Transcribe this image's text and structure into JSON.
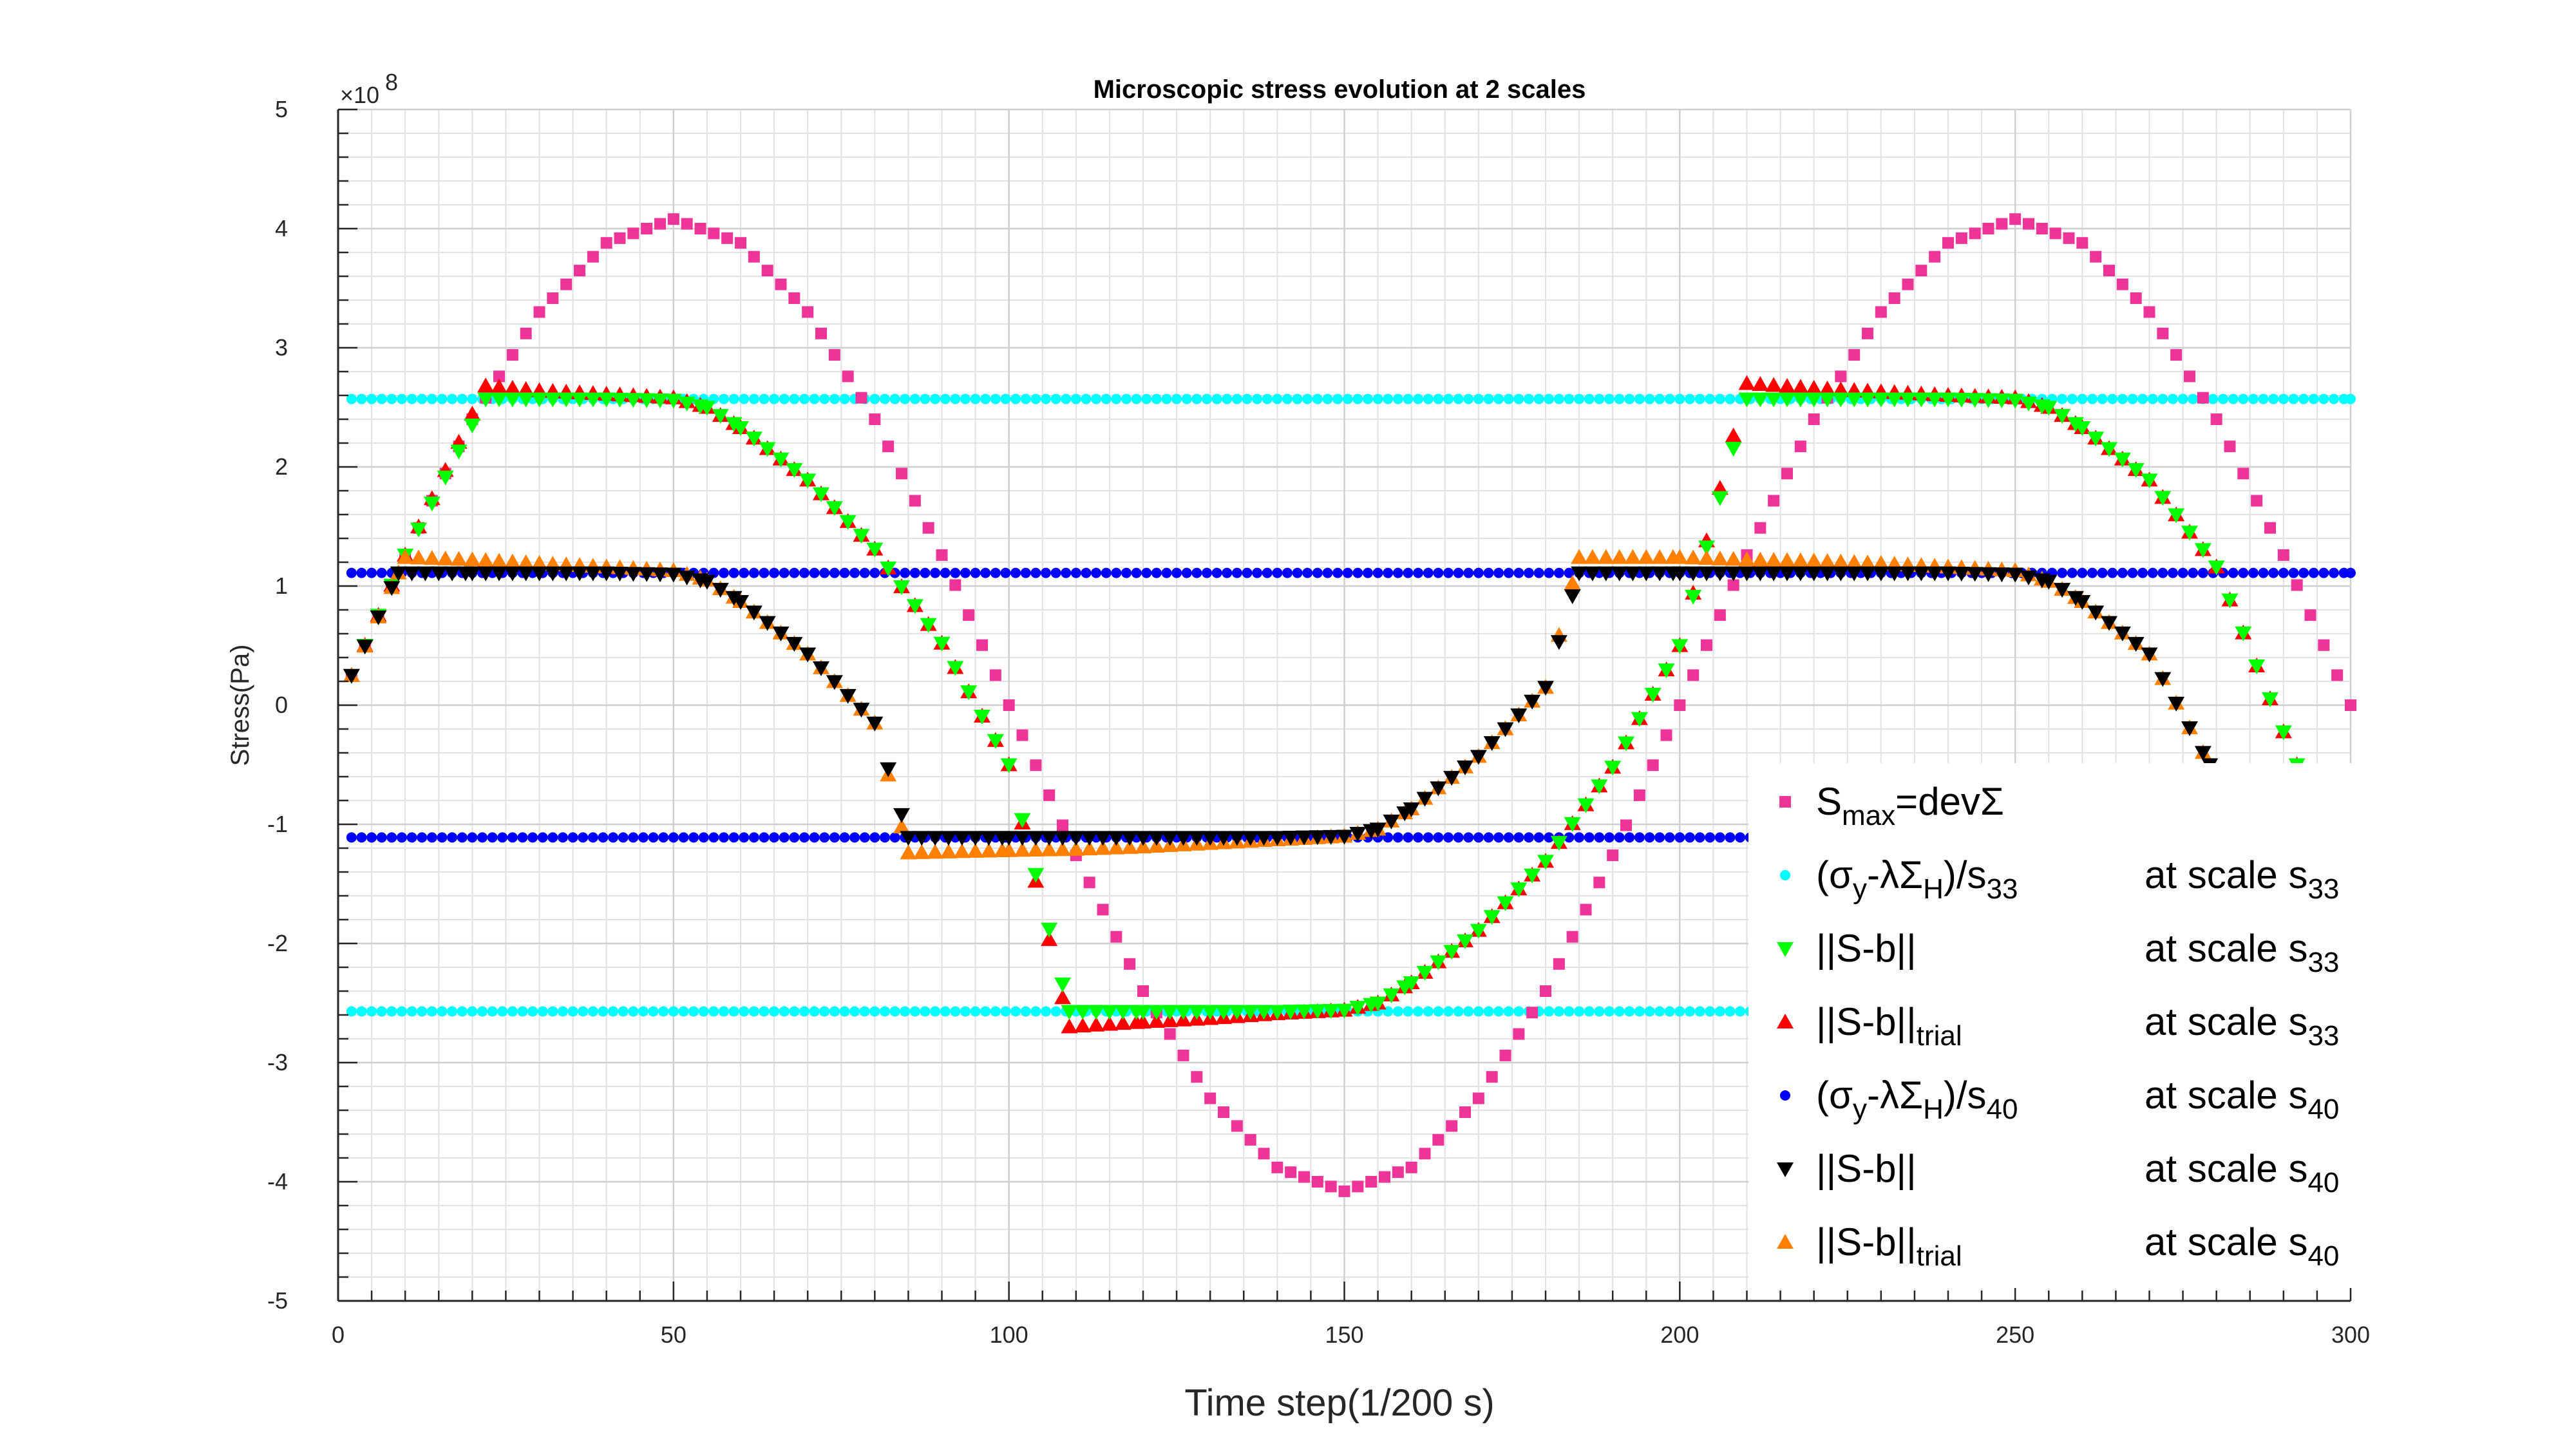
{
  "chart_data": {
    "type": "scatter",
    "title": "Microscopic stress evolution at 2 scales",
    "xlabel": "Time step(1/200 s)",
    "ylabel": "Stress(Pa)",
    "exponent_label": "×10",
    "exponent_power": "8",
    "xlim": [
      0,
      300
    ],
    "ylim": [
      -5,
      5
    ],
    "y_multiplier": 100000000,
    "x_ticks": [
      0,
      50,
      100,
      150,
      200,
      250,
      300
    ],
    "y_ticks": [
      -5,
      -4,
      -3,
      -2,
      -1,
      0,
      1,
      2,
      3,
      4,
      5
    ],
    "grid": true,
    "minor_grid": true,
    "legend_position": "bottom-right",
    "colors": {
      "smax": "#ee3399",
      "threshold33": "#00ffff",
      "sb33": "#00ff00",
      "sbtrial33": "#ff0000",
      "threshold40": "#0000ff",
      "sb40": "#000000",
      "sbtrial40": "#ff8000"
    },
    "series": [
      {
        "key": "smax",
        "marker": "square",
        "legend": {
          "main": "S",
          "sub": "max",
          "rest": "=devΣ",
          "scale": "",
          "scale_sub": ""
        },
        "x": [
          2,
          10,
          20,
          30,
          40,
          50,
          60,
          70,
          80,
          90,
          100,
          110,
          120,
          130,
          140,
          150,
          160,
          170,
          180,
          190,
          200,
          210,
          220,
          230,
          240,
          250,
          260,
          270,
          280,
          290,
          300
        ],
        "y": [
          0.25,
          1.26,
          2.4,
          3.3,
          3.88,
          4.08,
          3.88,
          3.3,
          2.4,
          1.26,
          0.0,
          -1.26,
          -2.4,
          -3.3,
          -3.88,
          -4.08,
          -3.88,
          -3.3,
          -2.4,
          -1.26,
          0.0,
          1.26,
          2.4,
          3.3,
          3.88,
          4.08,
          3.88,
          3.3,
          2.4,
          1.26,
          0.0
        ]
      },
      {
        "key": "threshold33",
        "marker": "circle",
        "legend": {
          "main": "(σ",
          "sub": "y",
          "rest": "-λΣ",
          "sub2": "H",
          "rest2": ")/s",
          "sub3": "33",
          "scale": "at scale s",
          "scale_sub": "33"
        },
        "x": [
          2,
          300
        ],
        "y": [
          2.57,
          2.57
        ],
        "y_mirror": -2.57
      },
      {
        "key": "sb33",
        "marker": "triangle-down",
        "legend": {
          "main": "||S-b||",
          "sub": "",
          "rest": "",
          "scale": "at scale s",
          "scale_sub": "33"
        },
        "x": [
          2,
          10,
          22,
          30,
          40,
          50,
          55,
          60,
          70,
          80,
          90,
          100,
          109,
          120,
          130,
          140,
          150,
          155,
          160,
          170,
          180,
          190,
          200,
          210,
          220,
          230,
          240,
          250,
          255,
          260,
          270,
          280,
          292
        ],
        "y": [
          0.25,
          1.26,
          2.57,
          2.57,
          2.57,
          2.56,
          2.5,
          2.33,
          1.89,
          1.31,
          0.52,
          -0.5,
          -2.57,
          -2.57,
          -2.57,
          -2.57,
          -2.56,
          -2.5,
          -2.33,
          -1.89,
          -1.31,
          -0.52,
          0.5,
          2.57,
          2.57,
          2.57,
          2.57,
          2.56,
          2.5,
          2.33,
          1.89,
          1.16,
          -0.5
        ]
      },
      {
        "key": "sbtrial33",
        "marker": "triangle-up",
        "legend": {
          "main": "||S-b||",
          "sub": "trial",
          "rest": "",
          "scale": "at scale s",
          "scale_sub": "33"
        },
        "x": [
          2,
          10,
          22,
          30,
          40,
          50,
          55,
          60,
          70,
          80,
          90,
          100,
          109,
          120,
          130,
          140,
          150,
          155,
          160,
          170,
          180,
          190,
          200,
          210,
          220,
          230,
          240,
          250,
          255,
          260,
          270,
          280,
          292
        ],
        "y": [
          0.25,
          1.26,
          2.68,
          2.64,
          2.61,
          2.58,
          2.5,
          2.33,
          1.89,
          1.31,
          0.52,
          -0.5,
          -2.7,
          -2.66,
          -2.63,
          -2.59,
          -2.56,
          -2.5,
          -2.33,
          -1.89,
          -1.31,
          -0.52,
          0.5,
          2.7,
          2.66,
          2.63,
          2.6,
          2.58,
          2.5,
          2.33,
          1.89,
          1.16,
          -0.5
        ]
      },
      {
        "key": "threshold40",
        "marker": "circle",
        "legend": {
          "main": "(σ",
          "sub": "y",
          "rest": "-λΣ",
          "sub2": "H",
          "rest2": ")/s",
          "sub3": "40",
          "scale": "at scale s",
          "scale_sub": "40"
        },
        "x": [
          2,
          300
        ],
        "y": [
          1.11,
          1.11
        ],
        "y_mirror": -1.11
      },
      {
        "key": "sb40",
        "marker": "triangle-down",
        "legend": {
          "main": "||S-b||",
          "sub": "",
          "rest": "",
          "scale": "at scale s",
          "scale_sub": "40"
        },
        "x": [
          2,
          9,
          20,
          30,
          40,
          50,
          55,
          60,
          70,
          80,
          85,
          100,
          110,
          120,
          130,
          140,
          150,
          155,
          160,
          170,
          180,
          185,
          200,
          210,
          220,
          230,
          240,
          250,
          255,
          260,
          270,
          279
        ],
        "y": [
          0.25,
          1.11,
          1.11,
          1.11,
          1.11,
          1.1,
          1.04,
          0.87,
          0.43,
          -0.15,
          -1.11,
          -1.11,
          -1.11,
          -1.11,
          -1.11,
          -1.11,
          -1.1,
          -1.04,
          -0.87,
          -0.43,
          0.15,
          1.11,
          1.11,
          1.11,
          1.11,
          1.11,
          1.11,
          1.1,
          1.04,
          0.87,
          0.43,
          -0.5
        ]
      },
      {
        "key": "sbtrial40",
        "marker": "triangle-up",
        "legend": {
          "main": "||S-b||",
          "sub": "trial",
          "rest": "",
          "scale": "at scale s",
          "scale_sub": "40"
        },
        "x": [
          2,
          9,
          10,
          20,
          30,
          40,
          50,
          55,
          60,
          70,
          80,
          85,
          100,
          110,
          120,
          130,
          140,
          150,
          155,
          160,
          170,
          180,
          185,
          200,
          210,
          220,
          230,
          240,
          250,
          255,
          260,
          270,
          279
        ],
        "y": [
          0.25,
          1.11,
          1.24,
          1.22,
          1.19,
          1.16,
          1.13,
          1.05,
          0.87,
          0.43,
          -0.15,
          -1.24,
          -1.22,
          -1.21,
          -1.19,
          -1.16,
          -1.13,
          -1.1,
          -1.04,
          -0.87,
          -0.43,
          0.15,
          1.24,
          1.24,
          1.22,
          1.21,
          1.19,
          1.16,
          1.13,
          1.04,
          0.87,
          0.43,
          -0.5
        ]
      }
    ]
  }
}
